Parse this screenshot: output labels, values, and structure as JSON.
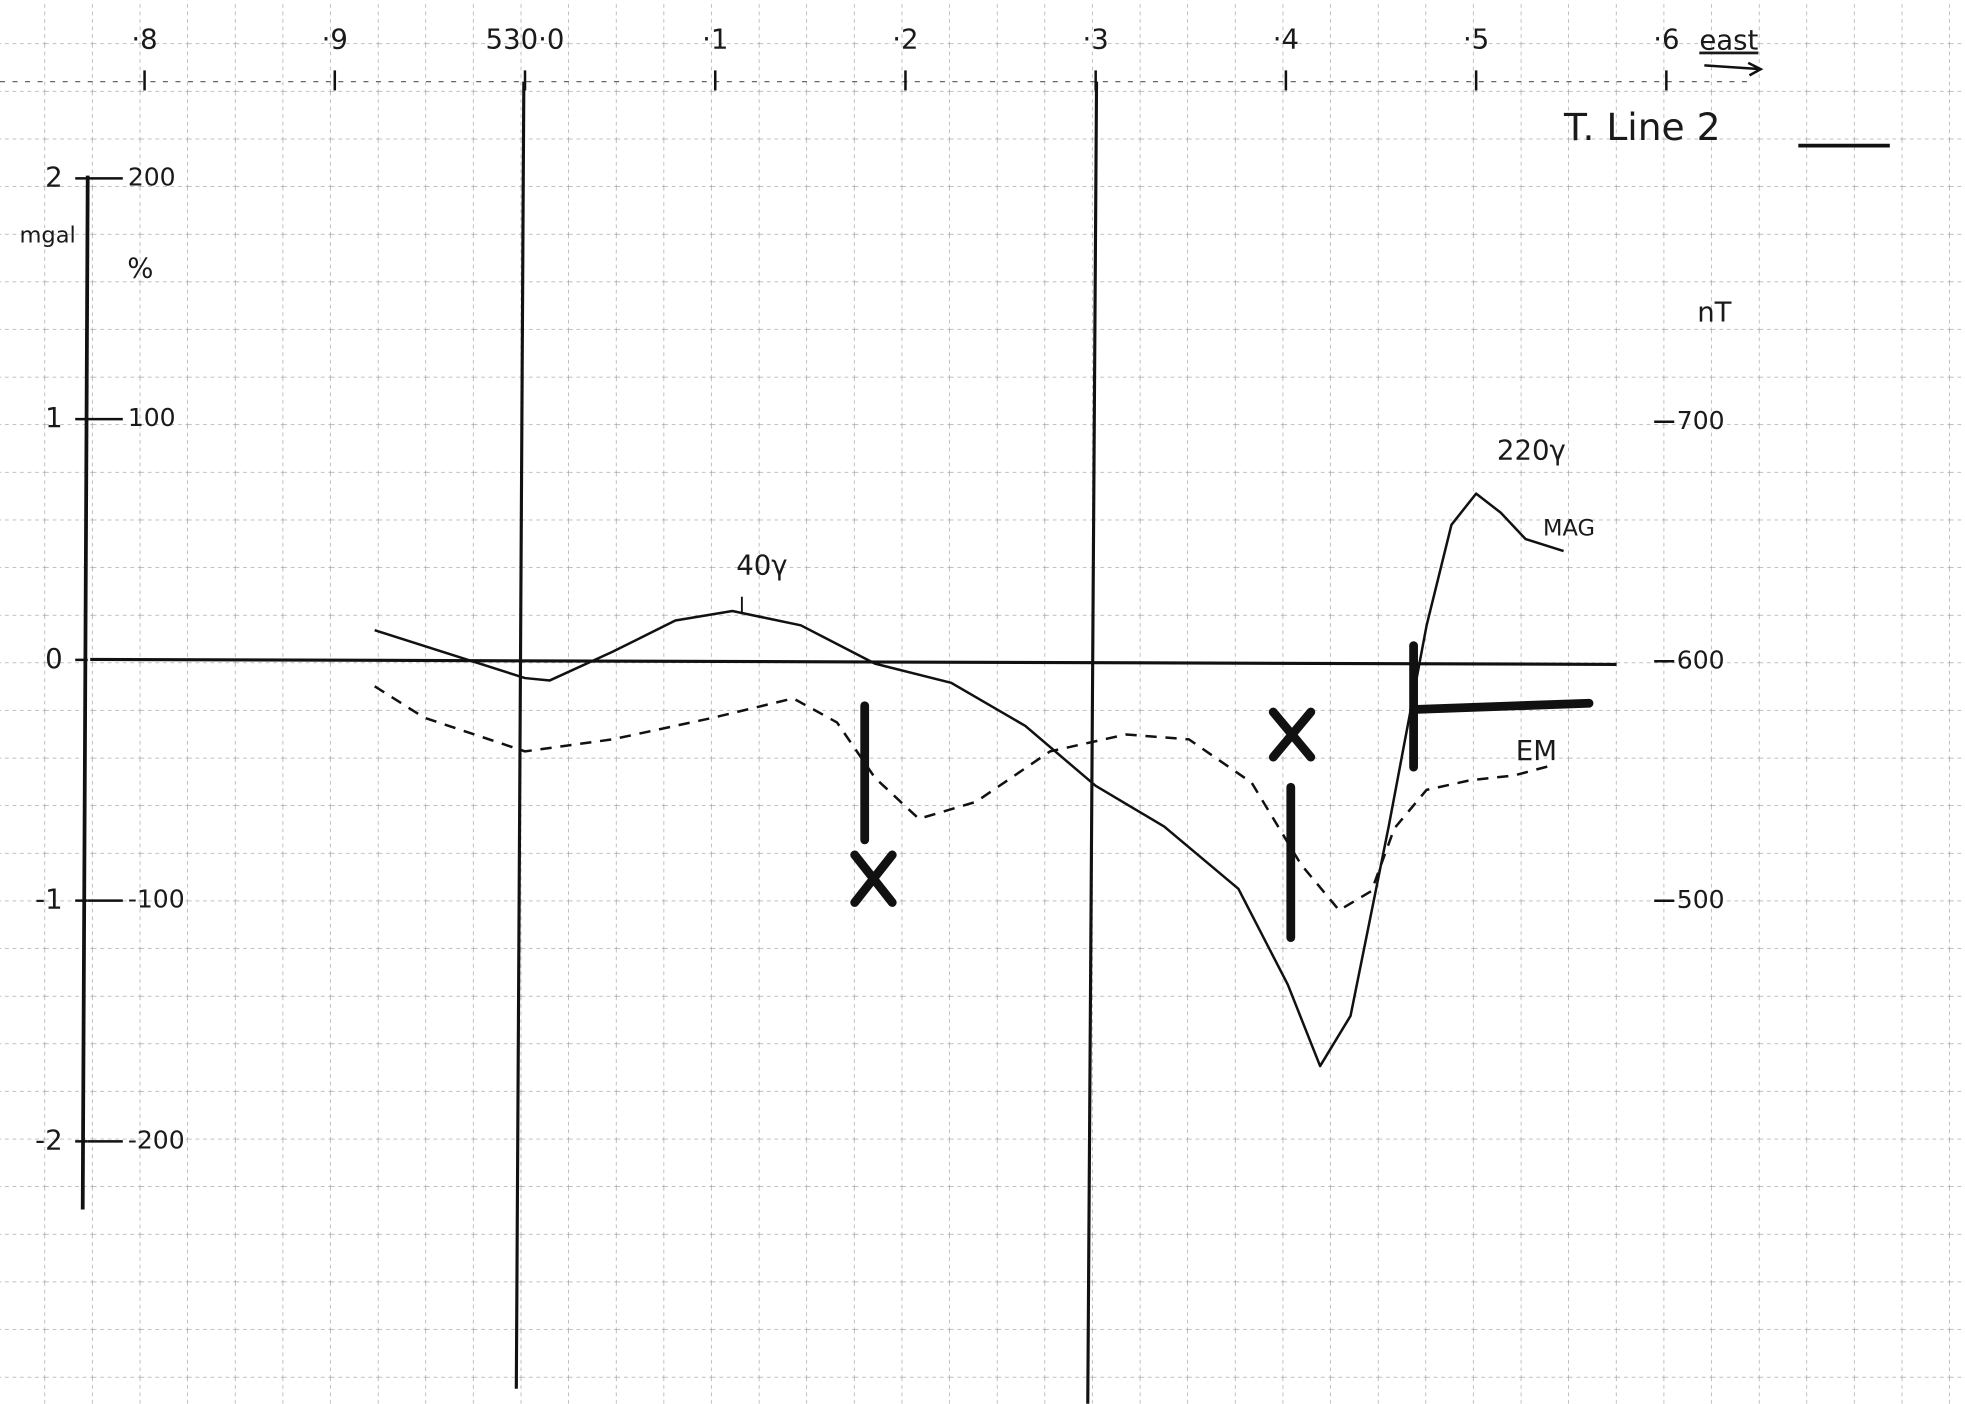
{
  "chart_data": {
    "type": "line",
    "title": "T. Line 2",
    "xlabel": "east",
    "ylabel": "%",
    "y2label": "nT",
    "y3label": "mgal",
    "xlim": [
      529.724,
      530.757
    ],
    "xticks": [
      {
        "value": 529.8,
        "label": "·8"
      },
      {
        "value": 529.9,
        "label": "·9"
      },
      {
        "value": 530.0,
        "label": "530·0"
      },
      {
        "value": 530.1,
        "label": "·1"
      },
      {
        "value": 530.2,
        "label": "·2"
      },
      {
        "value": 530.3,
        "label": "·3"
      },
      {
        "value": 530.4,
        "label": "·4"
      },
      {
        "value": 530.5,
        "label": "·5"
      },
      {
        "value": 530.6,
        "label": "·6"
      }
    ],
    "ylim": [
      -309,
      274
    ],
    "yticks": [
      200,
      100,
      -100,
      -200
    ],
    "y2lim": [
      290,
      876
    ],
    "y2ticks": [
      700,
      600,
      500
    ],
    "y3lim": [
      -3.09,
      2.74
    ],
    "y3ticks": [
      2,
      1,
      0,
      -1,
      -2
    ],
    "grid": true,
    "annotations": [
      "40γ",
      "220γ"
    ],
    "series": [
      {
        "name": "MAG",
        "color": "#111111",
        "dash": false,
        "axis": "y2",
        "x": [
          529.921,
          530.0,
          530.013,
          530.046,
          530.079,
          530.109,
          530.145,
          530.184,
          530.224,
          530.263,
          530.3,
          530.336,
          530.375,
          530.401,
          530.418,
          530.434,
          530.454,
          530.474,
          530.487,
          530.5,
          530.513,
          530.526,
          530.546
        ],
        "values": [
          613,
          593,
          592,
          604,
          617,
          621,
          615,
          599,
          591,
          573,
          548,
          531,
          505,
          465,
          431,
          452,
          531,
          615,
          657,
          670,
          662,
          651,
          646
        ]
      },
      {
        "name": "EM",
        "color": "#111111",
        "dash": true,
        "axis": "y",
        "x": [
          529.921,
          529.947,
          530.0,
          530.046,
          530.099,
          530.141,
          530.164,
          530.184,
          530.207,
          530.237,
          530.276,
          530.316,
          530.349,
          530.382,
          530.408,
          530.428,
          530.445,
          530.457,
          530.474,
          530.497,
          530.52,
          530.539
        ],
        "values": [
          -11,
          -24,
          -38,
          -33,
          -24,
          -16,
          -26,
          -49,
          -66,
          -59,
          -38,
          -31,
          -33,
          -51,
          -85,
          -104,
          -96,
          -70,
          -54,
          -50,
          -48,
          -44
        ]
      }
    ]
  }
}
